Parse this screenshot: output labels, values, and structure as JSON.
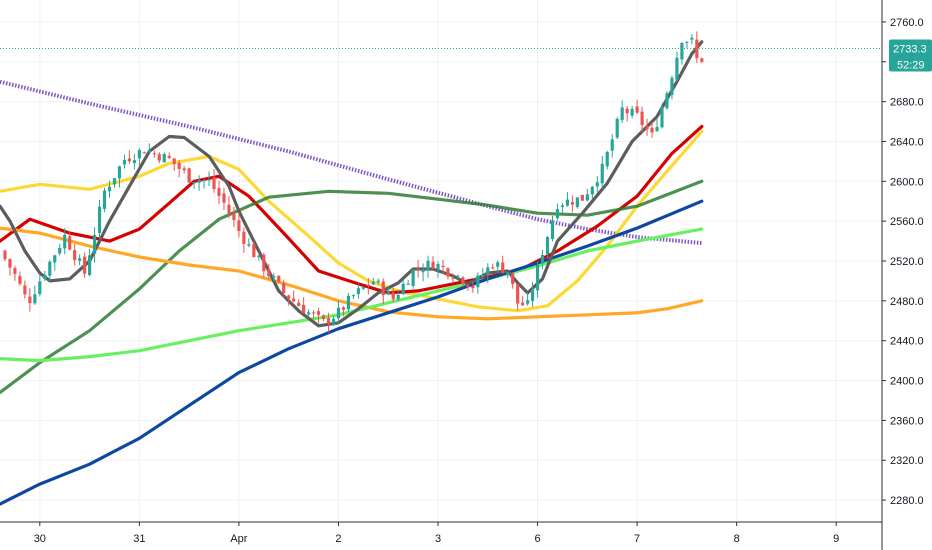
{
  "chart_data": {
    "type": "candlestick",
    "price_axis": {
      "ticks": [
        2280,
        2320,
        2360,
        2400,
        2440,
        2480,
        2520,
        2560,
        2600,
        2640,
        2680,
        2720,
        2760
      ],
      "tick_labels": [
        "2280.0",
        "2320.0",
        "2360.0",
        "2400.0",
        "2440.0",
        "2480.0",
        "2520.0",
        "2560.0",
        "2600.0",
        "2640.0",
        "2680.0",
        "2720.0",
        "2760.0"
      ],
      "range": [
        2258,
        2782
      ]
    },
    "time_axis": {
      "ticks": [
        {
          "label": "30",
          "t": 0
        },
        {
          "label": "31",
          "t": 1
        },
        {
          "label": "Apr",
          "t": 2
        },
        {
          "label": "2",
          "t": 3
        },
        {
          "label": "3",
          "t": 4
        },
        {
          "label": "6",
          "t": 5
        },
        {
          "label": "7",
          "t": 6
        },
        {
          "label": "8",
          "t": 7
        },
        {
          "label": "9",
          "t": 8
        }
      ],
      "range": [
        -0.4,
        8.46
      ]
    },
    "last_price": {
      "value": 2733.3,
      "label": "2733.3",
      "countdown": "52:29",
      "color": "#26a69a"
    },
    "colors": {
      "up": "#26a69a",
      "down": "#ef5350",
      "grid": "#eef0f3"
    },
    "ohlc_keys": [
      "open",
      "high",
      "low",
      "close"
    ],
    "ohlc_anchors": [
      {
        "t": -0.4,
        "close": 2530
      },
      {
        "t": -0.25,
        "close": 2506
      },
      {
        "t": -0.12,
        "close": 2478
      },
      {
        "t": 0.05,
        "close": 2510
      },
      {
        "t": 0.25,
        "close": 2545
      },
      {
        "t": 0.45,
        "close": 2508
      },
      {
        "t": 0.65,
        "close": 2590
      },
      {
        "t": 0.85,
        "close": 2622
      },
      {
        "t": 1.05,
        "close": 2632
      },
      {
        "t": 1.3,
        "close": 2622
      },
      {
        "t": 1.5,
        "close": 2604
      },
      {
        "t": 1.7,
        "close": 2600
      },
      {
        "t": 1.85,
        "close": 2578
      },
      {
        "t": 2.0,
        "close": 2550
      },
      {
        "t": 2.2,
        "close": 2520
      },
      {
        "t": 2.45,
        "close": 2488
      },
      {
        "t": 2.7,
        "close": 2468
      },
      {
        "t": 2.85,
        "close": 2458
      },
      {
        "t": 3.0,
        "close": 2468
      },
      {
        "t": 3.15,
        "close": 2485
      },
      {
        "t": 3.35,
        "close": 2500
      },
      {
        "t": 3.55,
        "close": 2482
      },
      {
        "t": 3.75,
        "close": 2510
      },
      {
        "t": 3.95,
        "close": 2518
      },
      {
        "t": 4.2,
        "close": 2505
      },
      {
        "t": 4.35,
        "close": 2495
      },
      {
        "t": 4.55,
        "close": 2518
      },
      {
        "t": 4.7,
        "close": 2510
      },
      {
        "t": 4.8,
        "close": 2478
      },
      {
        "t": 4.9,
        "close": 2475
      },
      {
        "t": 5.05,
        "close": 2530
      },
      {
        "t": 5.2,
        "close": 2578
      },
      {
        "t": 5.45,
        "close": 2583
      },
      {
        "t": 5.65,
        "close": 2612
      },
      {
        "t": 5.85,
        "close": 2672
      },
      {
        "t": 6.0,
        "close": 2665
      },
      {
        "t": 6.15,
        "close": 2645
      },
      {
        "t": 6.3,
        "close": 2690
      },
      {
        "t": 6.45,
        "close": 2744
      },
      {
        "t": 6.55,
        "close": 2740
      },
      {
        "t": 6.6,
        "close": 2722
      },
      {
        "t": 6.62,
        "close": 2692
      },
      {
        "t": 6.66,
        "close": 2733.3
      }
    ],
    "series": [
      {
        "color": "#7e57c2",
        "style": "dotted",
        "points": [
          [
            -0.4,
            2700
          ],
          [
            0.5,
            2678
          ],
          [
            1.5,
            2655
          ],
          [
            2.5,
            2630
          ],
          [
            3.5,
            2602
          ],
          [
            4.5,
            2575
          ],
          [
            5.0,
            2562
          ],
          [
            5.5,
            2552
          ],
          [
            6.0,
            2544
          ],
          [
            6.65,
            2538
          ]
        ]
      },
      {
        "color": "#fdd835",
        "points": [
          [
            -0.4,
            2590
          ],
          [
            0.0,
            2597
          ],
          [
            0.5,
            2592
          ],
          [
            1.0,
            2605
          ],
          [
            1.3,
            2618
          ],
          [
            1.7,
            2625
          ],
          [
            2.0,
            2612
          ],
          [
            2.3,
            2580
          ],
          [
            2.7,
            2545
          ],
          [
            3.0,
            2518
          ],
          [
            3.3,
            2500
          ],
          [
            3.6,
            2490
          ],
          [
            4.0,
            2482
          ],
          [
            4.4,
            2474
          ],
          [
            4.8,
            2470
          ],
          [
            5.1,
            2475
          ],
          [
            5.4,
            2500
          ],
          [
            5.7,
            2535
          ],
          [
            6.0,
            2575
          ],
          [
            6.3,
            2610
          ],
          [
            6.65,
            2650
          ]
        ]
      },
      {
        "color": "#d50000",
        "points": [
          [
            -0.4,
            2540
          ],
          [
            -0.1,
            2562
          ],
          [
            0.3,
            2548
          ],
          [
            0.7,
            2540
          ],
          [
            1.0,
            2552
          ],
          [
            1.3,
            2578
          ],
          [
            1.55,
            2600
          ],
          [
            1.8,
            2605
          ],
          [
            2.1,
            2585
          ],
          [
            2.45,
            2548
          ],
          [
            2.8,
            2510
          ],
          [
            3.2,
            2497
          ],
          [
            3.5,
            2488
          ],
          [
            3.8,
            2490
          ],
          [
            4.0,
            2494
          ],
          [
            4.4,
            2502
          ],
          [
            4.8,
            2510
          ],
          [
            5.2,
            2530
          ],
          [
            5.6,
            2555
          ],
          [
            6.0,
            2585
          ],
          [
            6.35,
            2628
          ],
          [
            6.65,
            2655
          ]
        ]
      },
      {
        "color": "#2e7d32",
        "opacity": 0.85,
        "points": [
          [
            -0.4,
            2388
          ],
          [
            0.0,
            2418
          ],
          [
            0.5,
            2450
          ],
          [
            1.0,
            2492
          ],
          [
            1.4,
            2530
          ],
          [
            1.8,
            2562
          ],
          [
            2.3,
            2584
          ],
          [
            2.9,
            2590
          ],
          [
            3.5,
            2588
          ],
          [
            4.0,
            2582
          ],
          [
            4.5,
            2576
          ],
          [
            5.0,
            2568
          ],
          [
            5.5,
            2566
          ],
          [
            6.0,
            2575
          ],
          [
            6.65,
            2600
          ]
        ]
      },
      {
        "color": "#ffa726",
        "points": [
          [
            -0.4,
            2553
          ],
          [
            0.0,
            2548
          ],
          [
            0.5,
            2535
          ],
          [
            1.0,
            2524
          ],
          [
            1.5,
            2516
          ],
          [
            2.0,
            2510
          ],
          [
            2.5,
            2496
          ],
          [
            3.0,
            2480
          ],
          [
            3.5,
            2469
          ],
          [
            4.0,
            2464
          ],
          [
            4.5,
            2462
          ],
          [
            5.0,
            2464
          ],
          [
            5.5,
            2466
          ],
          [
            6.0,
            2468
          ],
          [
            6.3,
            2472
          ],
          [
            6.65,
            2480
          ]
        ]
      },
      {
        "color": "#69f060",
        "points": [
          [
            -0.4,
            2422
          ],
          [
            0.0,
            2420
          ],
          [
            0.5,
            2424
          ],
          [
            1.0,
            2430
          ],
          [
            1.5,
            2440
          ],
          [
            2.0,
            2450
          ],
          [
            2.5,
            2458
          ],
          [
            3.0,
            2466
          ],
          [
            3.5,
            2478
          ],
          [
            4.0,
            2490
          ],
          [
            4.5,
            2502
          ],
          [
            5.0,
            2515
          ],
          [
            5.5,
            2530
          ],
          [
            6.0,
            2540
          ],
          [
            6.65,
            2552
          ]
        ]
      },
      {
        "color": "#0d47a1",
        "points": [
          [
            -0.4,
            2276
          ],
          [
            0.0,
            2296
          ],
          [
            0.5,
            2316
          ],
          [
            1.0,
            2342
          ],
          [
            1.5,
            2375
          ],
          [
            2.0,
            2408
          ],
          [
            2.5,
            2432
          ],
          [
            3.0,
            2452
          ],
          [
            3.5,
            2468
          ],
          [
            4.0,
            2484
          ],
          [
            4.5,
            2502
          ],
          [
            5.0,
            2518
          ],
          [
            5.5,
            2535
          ],
          [
            6.0,
            2553
          ],
          [
            6.65,
            2580
          ]
        ]
      },
      {
        "color": "#5d5d5d",
        "points": [
          [
            -0.4,
            2575
          ],
          [
            -0.3,
            2560
          ],
          [
            -0.15,
            2530
          ],
          [
            0.0,
            2508
          ],
          [
            0.1,
            2500
          ],
          [
            0.3,
            2502
          ],
          [
            0.5,
            2520
          ],
          [
            0.7,
            2560
          ],
          [
            0.9,
            2595
          ],
          [
            1.1,
            2630
          ],
          [
            1.3,
            2645
          ],
          [
            1.45,
            2644
          ],
          [
            1.7,
            2625
          ],
          [
            1.9,
            2595
          ],
          [
            2.0,
            2570
          ],
          [
            2.2,
            2530
          ],
          [
            2.4,
            2490
          ],
          [
            2.6,
            2470
          ],
          [
            2.8,
            2455
          ],
          [
            3.0,
            2458
          ],
          [
            3.2,
            2472
          ],
          [
            3.4,
            2488
          ],
          [
            3.6,
            2498
          ],
          [
            3.75,
            2512
          ],
          [
            3.95,
            2512
          ],
          [
            4.15,
            2505
          ],
          [
            4.3,
            2497
          ],
          [
            4.5,
            2508
          ],
          [
            4.7,
            2510
          ],
          [
            4.8,
            2498
          ],
          [
            4.9,
            2488
          ],
          [
            5.05,
            2502
          ],
          [
            5.2,
            2540
          ],
          [
            5.45,
            2568
          ],
          [
            5.7,
            2598
          ],
          [
            5.95,
            2640
          ],
          [
            6.2,
            2665
          ],
          [
            6.4,
            2700
          ],
          [
            6.55,
            2728
          ],
          [
            6.65,
            2740
          ]
        ]
      }
    ]
  }
}
